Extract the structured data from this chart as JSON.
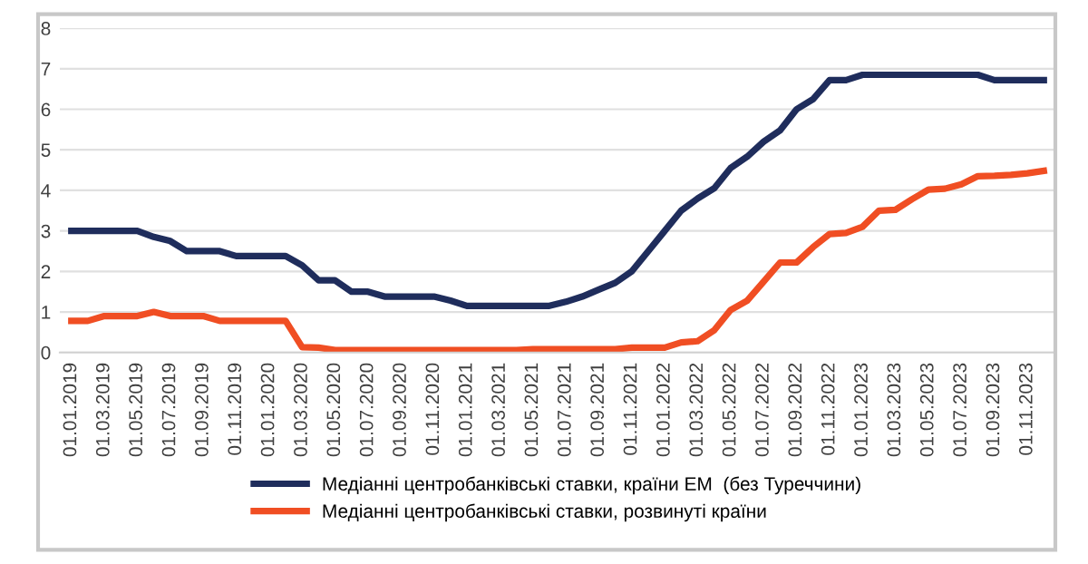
{
  "chart_data": {
    "type": "line",
    "categories": [
      "01.01.2019",
      null,
      "01.03.2019",
      null,
      "01.05.2019",
      null,
      "01.07.2019",
      null,
      "01.09.2019",
      null,
      "01.11.2019",
      null,
      "01.01.2020",
      null,
      "01.03.2020",
      null,
      "01.05.2020",
      null,
      "01.07.2020",
      null,
      "01.09.2020",
      null,
      "01.11.2020",
      null,
      "01.01.2021",
      null,
      "01.03.2021",
      null,
      "01.05.2021",
      null,
      "01.07.2021",
      null,
      "01.09.2021",
      null,
      "01.11.2021",
      null,
      "01.01.2022",
      null,
      "01.03.2022",
      null,
      "01.05.2022",
      null,
      "01.07.2022",
      null,
      "01.09.2022",
      null,
      "01.11.2022",
      null,
      "01.01.2023",
      null,
      "01.03.2023",
      null,
      "01.05.2023",
      null,
      "01.07.2023",
      null,
      "01.09.2023",
      null,
      "01.11.2023",
      null
    ],
    "series": [
      {
        "name": "Медіанні центробанківські ставки, країни ЕМ  (без Туреччини)",
        "color": "#1f2d5c",
        "values": [
          3.0,
          3.0,
          3.0,
          3.0,
          3.0,
          2.85,
          2.75,
          2.5,
          2.5,
          2.5,
          2.38,
          2.38,
          2.38,
          2.38,
          2.15,
          1.78,
          1.78,
          1.5,
          1.5,
          1.38,
          1.38,
          1.38,
          1.38,
          1.28,
          1.15,
          1.15,
          1.15,
          1.15,
          1.15,
          1.15,
          1.25,
          1.38,
          1.55,
          1.72,
          2.0,
          2.5,
          3.0,
          3.5,
          3.8,
          4.05,
          4.55,
          4.83,
          5.2,
          5.48,
          6.0,
          6.25,
          6.72,
          6.72,
          6.85,
          6.85,
          6.85,
          6.85,
          6.85,
          6.85,
          6.85,
          6.85,
          6.72,
          6.72,
          6.72,
          6.72
        ]
      },
      {
        "name": "Медіанні центробанківські ставки, розвинуті країни",
        "color": "#f04e23",
        "values": [
          0.78,
          0.78,
          0.9,
          0.9,
          0.9,
          1.0,
          0.9,
          0.9,
          0.9,
          0.78,
          0.78,
          0.78,
          0.78,
          0.78,
          0.13,
          0.12,
          0.06,
          0.06,
          0.06,
          0.06,
          0.06,
          0.06,
          0.06,
          0.06,
          0.06,
          0.06,
          0.06,
          0.06,
          0.08,
          0.08,
          0.08,
          0.08,
          0.08,
          0.08,
          0.12,
          0.12,
          0.12,
          0.25,
          0.28,
          0.55,
          1.05,
          1.28,
          1.75,
          2.22,
          2.22,
          2.6,
          2.92,
          2.95,
          3.1,
          3.5,
          3.52,
          3.78,
          4.02,
          4.04,
          4.15,
          4.35,
          4.36,
          4.38,
          4.42,
          4.48
        ]
      }
    ],
    "ylim": [
      0,
      8
    ],
    "yticks": [
      0,
      1,
      2,
      3,
      4,
      5,
      6,
      7,
      8
    ],
    "grid": "y",
    "legend": "bottom",
    "marker": "none",
    "line_style": "solid"
  }
}
